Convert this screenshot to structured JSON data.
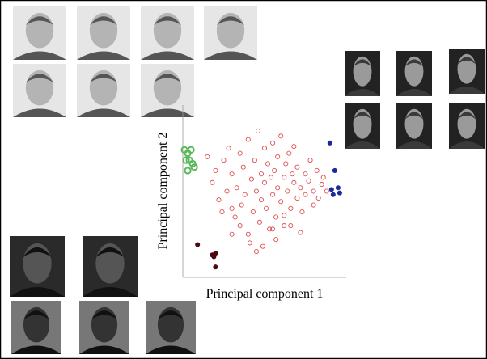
{
  "chart_data": {
    "type": "scatter",
    "xlabel": "Principal component 1",
    "ylabel": "Principal component 2",
    "xlim": [
      0,
      100
    ],
    "ylim": [
      0,
      100
    ],
    "series": [
      {
        "color": "#e05050",
        "x": [
          15,
          18,
          20,
          22,
          25,
          27,
          28,
          30,
          30,
          32,
          33,
          35,
          35,
          37,
          38,
          40,
          40,
          42,
          43,
          44,
          45,
          46,
          47,
          48,
          48,
          50,
          50,
          51,
          52,
          53,
          54,
          55,
          55,
          56,
          57,
          58,
          58,
          60,
          60,
          62,
          62,
          63,
          64,
          65,
          66,
          67,
          68,
          68,
          70,
          70,
          72,
          73,
          75,
          75,
          77,
          78,
          80,
          80,
          82,
          83,
          85,
          86,
          88,
          24,
          36,
          41,
          49,
          57,
          66,
          30,
          45,
          55,
          62,
          72
        ],
        "values": [
          70,
          55,
          62,
          45,
          68,
          50,
          75,
          40,
          60,
          35,
          52,
          72,
          30,
          64,
          48,
          80,
          25,
          57,
          38,
          68,
          50,
          85,
          32,
          60,
          45,
          75,
          55,
          40,
          66,
          28,
          58,
          48,
          78,
          62,
          35,
          70,
          52,
          44,
          82,
          58,
          30,
          66,
          50,
          72,
          40,
          60,
          55,
          76,
          46,
          64,
          52,
          38,
          60,
          48,
          56,
          68,
          50,
          42,
          62,
          46,
          54,
          58,
          50,
          38,
          42,
          20,
          18,
          22,
          30,
          25,
          15,
          28,
          36,
          26
        ]
      },
      {
        "color": "#5cb85c",
        "x": [
          1,
          3,
          5,
          2,
          4,
          6,
          3,
          7
        ],
        "values": [
          74,
          72,
          74,
          68,
          68,
          66,
          62,
          64
        ]
      },
      {
        "color": "#1a2a9a",
        "x": [
          90,
          93,
          95,
          92,
          96,
          91
        ],
        "values": [
          78,
          62,
          52,
          48,
          49,
          51
        ]
      },
      {
        "color": "#4a0a10",
        "x": [
          9,
          19,
          20,
          18,
          20
        ],
        "values": [
          19,
          12,
          14,
          13,
          6
        ]
      }
    ]
  }
}
